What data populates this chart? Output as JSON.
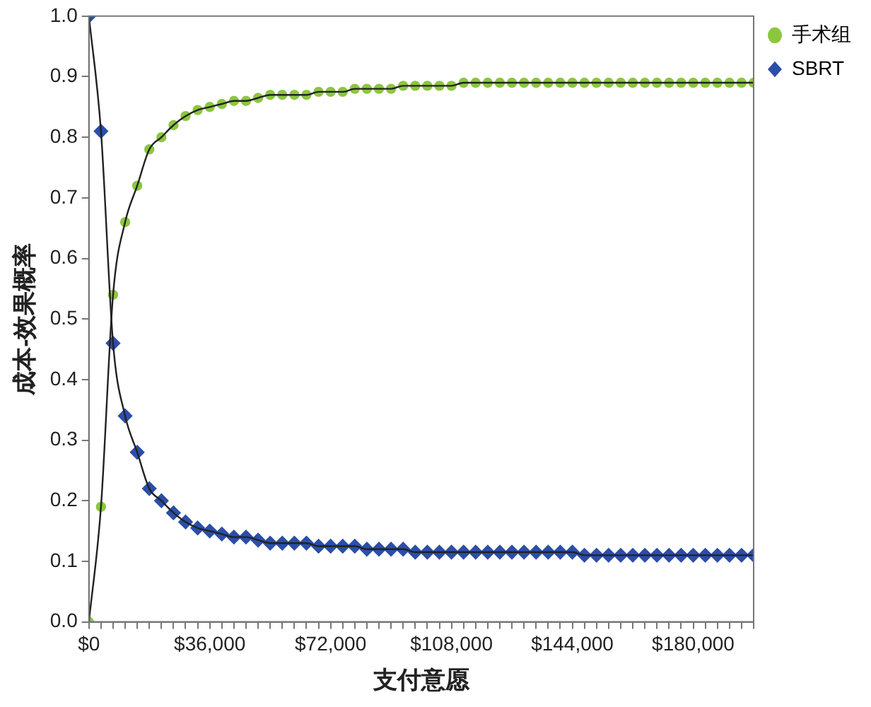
{
  "chart_data": {
    "type": "scatter",
    "xlabel": "支付意愿",
    "ylabel": "成本-效果概率",
    "x": [
      0,
      3600,
      7200,
      10800,
      14400,
      18000,
      21600,
      25200,
      28800,
      32400,
      36000,
      39600,
      43200,
      46800,
      50400,
      54000,
      57600,
      61200,
      64800,
      68400,
      72000,
      75600,
      79200,
      82800,
      86400,
      90000,
      93600,
      97200,
      100800,
      104400,
      108000,
      111600,
      115200,
      118800,
      122400,
      126000,
      129600,
      133200,
      136800,
      140400,
      144000,
      147600,
      151200,
      154800,
      158400,
      162000,
      165600,
      169200,
      172800,
      176400,
      180000,
      183600,
      187200,
      190800,
      194400,
      198000
    ],
    "series": [
      {
        "name": "手术组",
        "color": "#8cc63f",
        "marker": "circle",
        "values": [
          0,
          0.19,
          0.54,
          0.66,
          0.72,
          0.78,
          0.8,
          0.82,
          0.835,
          0.845,
          0.85,
          0.855,
          0.86,
          0.86,
          0.865,
          0.87,
          0.87,
          0.87,
          0.87,
          0.875,
          0.875,
          0.875,
          0.88,
          0.88,
          0.88,
          0.88,
          0.885,
          0.885,
          0.885,
          0.885,
          0.885,
          0.89,
          0.89,
          0.89,
          0.89,
          0.89,
          0.89,
          0.89,
          0.89,
          0.89,
          0.89,
          0.89,
          0.89,
          0.89,
          0.89,
          0.89,
          0.89,
          0.89,
          0.89,
          0.89,
          0.89,
          0.89,
          0.89,
          0.89,
          0.89,
          0.89
        ]
      },
      {
        "name": "SBRT",
        "color": "#2b4ea8",
        "marker": "diamond",
        "values": [
          1,
          0.81,
          0.46,
          0.34,
          0.28,
          0.22,
          0.2,
          0.18,
          0.165,
          0.155,
          0.15,
          0.145,
          0.14,
          0.14,
          0.135,
          0.13,
          0.13,
          0.13,
          0.13,
          0.125,
          0.125,
          0.125,
          0.125,
          0.12,
          0.12,
          0.12,
          0.12,
          0.115,
          0.115,
          0.115,
          0.115,
          0.115,
          0.115,
          0.115,
          0.115,
          0.115,
          0.115,
          0.115,
          0.115,
          0.115,
          0.115,
          0.11,
          0.11,
          0.11,
          0.11,
          0.11,
          0.11,
          0.11,
          0.11,
          0.11,
          0.11,
          0.11,
          0.11,
          0.11,
          0.11,
          0.11
        ]
      },
      {
        "type": "line",
        "color": "#222222",
        "marker": "none",
        "values": [
          0,
          0.19,
          0.54,
          0.66,
          0.72,
          0.78,
          0.8,
          0.82,
          0.835,
          0.845,
          0.85,
          0.855,
          0.86,
          0.86,
          0.865,
          0.87,
          0.87,
          0.87,
          0.87,
          0.875,
          0.875,
          0.875,
          0.88,
          0.88,
          0.88,
          0.88,
          0.885,
          0.885,
          0.885,
          0.885,
          0.885,
          0.89,
          0.89,
          0.89,
          0.89,
          0.89,
          0.89,
          0.89,
          0.89,
          0.89,
          0.89,
          0.89,
          0.89,
          0.89,
          0.89,
          0.89,
          0.89,
          0.89,
          0.89,
          0.89,
          0.89,
          0.89,
          0.89,
          0.89,
          0.89,
          0.89
        ]
      },
      {
        "type": "line",
        "color": "#222222",
        "marker": "none",
        "values": [
          1,
          0.81,
          0.46,
          0.34,
          0.28,
          0.22,
          0.2,
          0.18,
          0.165,
          0.155,
          0.15,
          0.145,
          0.14,
          0.14,
          0.135,
          0.13,
          0.13,
          0.13,
          0.13,
          0.125,
          0.125,
          0.125,
          0.125,
          0.12,
          0.12,
          0.12,
          0.12,
          0.115,
          0.115,
          0.115,
          0.115,
          0.115,
          0.115,
          0.115,
          0.115,
          0.115,
          0.115,
          0.115,
          0.115,
          0.115,
          0.115,
          0.11,
          0.11,
          0.11,
          0.11,
          0.11,
          0.11,
          0.11,
          0.11,
          0.11,
          0.11,
          0.11,
          0.11,
          0.11,
          0.11,
          0.11
        ]
      }
    ],
    "xlim": [
      0,
      198000
    ],
    "xticks": [
      {
        "value": 0,
        "label": "$0"
      },
      {
        "value": 3600,
        "label": null
      },
      {
        "value": 7200,
        "label": null
      },
      {
        "value": 10800,
        "label": null
      },
      {
        "value": 14400,
        "label": null
      },
      {
        "value": 18000,
        "label": null
      },
      {
        "value": 21600,
        "label": null
      },
      {
        "value": 25200,
        "label": null
      },
      {
        "value": 28800,
        "label": null
      },
      {
        "value": 32400,
        "label": null
      },
      {
        "value": 36000,
        "label": "$36,000"
      },
      {
        "value": 39600,
        "label": null
      },
      {
        "value": 43200,
        "label": null
      },
      {
        "value": 46800,
        "label": null
      },
      {
        "value": 50400,
        "label": null
      },
      {
        "value": 54000,
        "label": null
      },
      {
        "value": 57600,
        "label": null
      },
      {
        "value": 61200,
        "label": null
      },
      {
        "value": 64800,
        "label": null
      },
      {
        "value": 68400,
        "label": null
      },
      {
        "value": 72000,
        "label": "$72,000"
      },
      {
        "value": 75600,
        "label": null
      },
      {
        "value": 79200,
        "label": null
      },
      {
        "value": 82800,
        "label": null
      },
      {
        "value": 86400,
        "label": null
      },
      {
        "value": 90000,
        "label": null
      },
      {
        "value": 93600,
        "label": null
      },
      {
        "value": 97200,
        "label": null
      },
      {
        "value": 100800,
        "label": null
      },
      {
        "value": 104400,
        "label": null
      },
      {
        "value": 108000,
        "label": "$108,000"
      },
      {
        "value": 111600,
        "label": null
      },
      {
        "value": 115200,
        "label": null
      },
      {
        "value": 118800,
        "label": null
      },
      {
        "value": 122400,
        "label": null
      },
      {
        "value": 126000,
        "label": null
      },
      {
        "value": 129600,
        "label": null
      },
      {
        "value": 133200,
        "label": null
      },
      {
        "value": 136800,
        "label": null
      },
      {
        "value": 140400,
        "label": null
      },
      {
        "value": 144000,
        "label": "$144,000"
      },
      {
        "value": 147600,
        "label": null
      },
      {
        "value": 151200,
        "label": null
      },
      {
        "value": 154800,
        "label": null
      },
      {
        "value": 158400,
        "label": null
      },
      {
        "value": 162000,
        "label": null
      },
      {
        "value": 165600,
        "label": null
      },
      {
        "value": 169200,
        "label": null
      },
      {
        "value": 172800,
        "label": null
      },
      {
        "value": 176400,
        "label": null
      },
      {
        "value": 180000,
        "label": "$180,000"
      },
      {
        "value": 183600,
        "label": null
      },
      {
        "value": 187200,
        "label": null
      },
      {
        "value": 190800,
        "label": null
      },
      {
        "value": 194400,
        "label": null
      },
      {
        "value": 198000,
        "label": null
      }
    ],
    "ylim": [
      0,
      1
    ],
    "yticks": [
      {
        "value": 0,
        "label": "0.0"
      },
      0.1,
      0.2,
      0.3,
      0.4,
      0.5,
      0.6,
      0.7,
      0.8,
      0.9,
      {
        "value": 1,
        "label": "1.0"
      }
    ],
    "grid": false,
    "legend": "top right",
    "line_style": "solid"
  }
}
